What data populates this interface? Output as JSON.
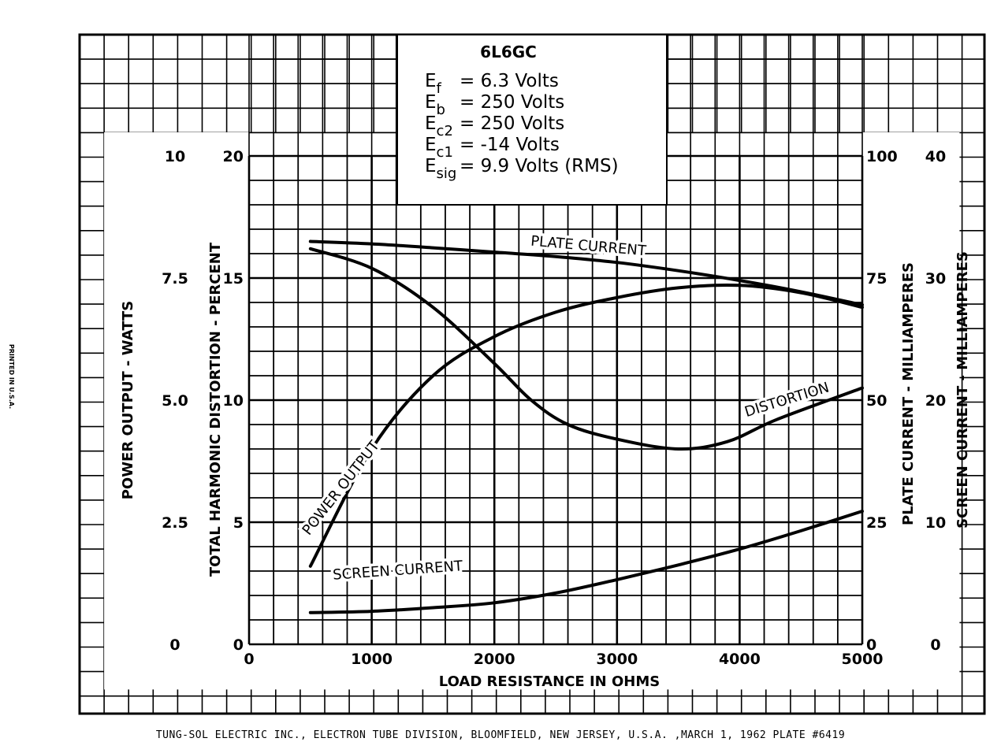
{
  "chart_data": {
    "type": "line",
    "title": "6L6GC",
    "conditions": [
      {
        "sym": "E",
        "sub": "f",
        "rhs": "= 6.3 Volts"
      },
      {
        "sym": "E",
        "sub": "b",
        "rhs": "= 250 Volts"
      },
      {
        "sym": "E",
        "sub": "c2",
        "rhs": "= 250 Volts"
      },
      {
        "sym": "E",
        "sub": "c1",
        "rhs": "= -14 Volts"
      },
      {
        "sym": "E",
        "sub": "sig",
        "rhs": "= 9.9 Volts (RMS)"
      }
    ],
    "xlabel": "LOAD RESISTANCE IN OHMS",
    "xlim": [
      0,
      5000
    ],
    "x_ticks": [
      "0",
      "1000",
      "2000",
      "3000",
      "4000",
      "5000"
    ],
    "y_axes": {
      "power_output": {
        "label": "POWER OUTPUT - WATTS",
        "lim": [
          0,
          10
        ],
        "ticks": [
          "0",
          "2.5",
          "5.0",
          "7.5",
          "10"
        ]
      },
      "distortion": {
        "label": "TOTAL HARMONIC DISTORTION - PERCENT",
        "lim": [
          0,
          20
        ],
        "ticks": [
          "0",
          "5",
          "10",
          "15",
          "20"
        ]
      },
      "plate_current": {
        "label": "PLATE CURRENT - MILLIAMPERES",
        "lim": [
          0,
          100
        ],
        "ticks": [
          "0",
          "25",
          "50",
          "75",
          "100"
        ]
      },
      "screen_current": {
        "label": "SCREEN CURRENT - MILLIAMPERES",
        "lim": [
          0,
          40
        ],
        "ticks": [
          "0",
          "10",
          "20",
          "30",
          "40"
        ]
      }
    },
    "series": [
      {
        "name": "PLATE CURRENT",
        "axis": "plate_current",
        "x": [
          500,
          1000,
          1500,
          2000,
          2500,
          3000,
          3500,
          4000,
          4500,
          5000
        ],
        "y": [
          82.5,
          82,
          81.2,
          80.3,
          79.4,
          78.2,
          76.5,
          74.5,
          72.2,
          69.5
        ]
      },
      {
        "name": "DISTORTION",
        "axis": "distortion",
        "x": [
          500,
          1000,
          1500,
          2000,
          2300,
          2600,
          3000,
          3500,
          3900,
          4300,
          5000
        ],
        "y": [
          16.2,
          15.4,
          13.8,
          11.5,
          10.0,
          9.0,
          8.4,
          8.0,
          8.3,
          9.2,
          10.5
        ]
      },
      {
        "name": "POWER OUTPUT",
        "axis": "power_output",
        "x": [
          500,
          1000,
          1500,
          2000,
          2500,
          3000,
          3500,
          4000,
          4500,
          5000
        ],
        "y": [
          1.6,
          4.0,
          5.5,
          6.3,
          6.8,
          7.1,
          7.3,
          7.35,
          7.2,
          6.9
        ]
      },
      {
        "name": "SCREEN CURRENT",
        "axis": "screen_current",
        "x": [
          500,
          1000,
          1500,
          2000,
          2500,
          3000,
          3500,
          4000,
          4500,
          5000
        ],
        "y": [
          2.6,
          2.7,
          3.0,
          3.4,
          4.2,
          5.3,
          6.5,
          7.8,
          9.3,
          10.9
        ]
      }
    ]
  },
  "footer": "TUNG-SOL ELECTRIC INC.,   ELECTRON TUBE DIVISION,   BLOOMFIELD, NEW JERSEY, U.S.A. ,MARCH 1, 1962  PLATE #6419",
  "margin_note": "PRINTED IN U.S.A."
}
